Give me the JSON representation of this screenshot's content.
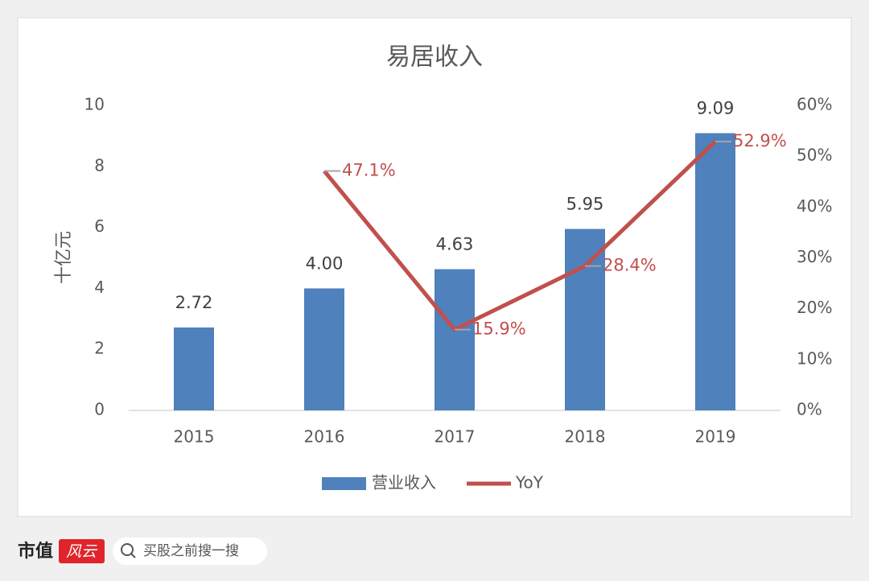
{
  "chart_data": {
    "type": "bar-line",
    "title": "易居收入",
    "y_label": "十亿元",
    "categories": [
      "2015",
      "2016",
      "2017",
      "2018",
      "2019"
    ],
    "series": [
      {
        "name": "营业收入",
        "type": "bar",
        "color": "#4f81bd",
        "values": [
          2.72,
          4.0,
          4.63,
          5.95,
          9.09
        ],
        "value_labels": [
          "2.72",
          "4.00",
          "4.63",
          "5.95",
          "9.09"
        ]
      },
      {
        "name": "YoY",
        "type": "line",
        "axis": "y2",
        "color": "#c0504d",
        "values": [
          null,
          47.1,
          15.9,
          28.4,
          52.9
        ],
        "value_labels": [
          null,
          "47.1%",
          "15.9%",
          "28.4%",
          "52.9%"
        ]
      }
    ],
    "ylim": [
      0,
      10
    ],
    "yticks": [
      0,
      2,
      4,
      6,
      8,
      10
    ],
    "y2lim": [
      0,
      60
    ],
    "y2ticks": [
      {
        "value": 0,
        "label": "0%"
      },
      {
        "value": 10,
        "label": "10%"
      },
      {
        "value": 20,
        "label": "20%"
      },
      {
        "value": 30,
        "label": "30%"
      },
      {
        "value": 40,
        "label": "40%"
      },
      {
        "value": 50,
        "label": "50%"
      },
      {
        "value": 60,
        "label": "60%"
      }
    ],
    "legend": "bottom"
  },
  "footer": {
    "brand": "市值",
    "logo": "风云",
    "search": "买股之前搜一搜"
  }
}
